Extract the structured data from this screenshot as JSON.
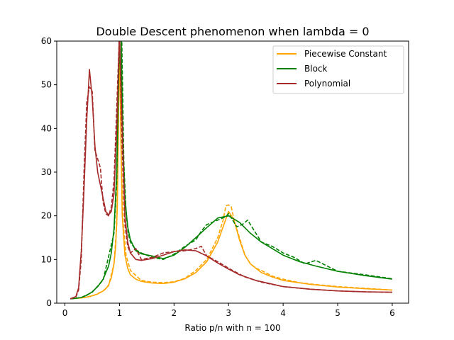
{
  "chart_data": {
    "type": "line",
    "title": "Double Descent phenomenon when lambda = 0",
    "xlabel": "Ratio p/n with n = 100",
    "ylabel": "",
    "xlim": [
      -0.15,
      6.3
    ],
    "ylim": [
      0,
      60
    ],
    "x_ticks": [
      0,
      1,
      2,
      3,
      4,
      5,
      6
    ],
    "y_ticks": [
      0,
      10,
      20,
      30,
      40,
      50,
      60
    ],
    "grid": false,
    "legend_position": "top-right",
    "series": [
      {
        "name": "Piecewise Constant",
        "color": "#ffa500",
        "solid": {
          "x": [
            0.1,
            0.2,
            0.3,
            0.4,
            0.5,
            0.6,
            0.7,
            0.75,
            0.8,
            0.85,
            0.9,
            0.93,
            0.96,
            0.98,
            1.0,
            1.02,
            1.05,
            1.1,
            1.15,
            1.2,
            1.3,
            1.4,
            1.5,
            1.6,
            1.8,
            2.0,
            2.2,
            2.4,
            2.6,
            2.8,
            2.9,
            3.0,
            3.1,
            3.2,
            3.3,
            3.4,
            3.6,
            3.8,
            4.0,
            4.5,
            5.0,
            5.5,
            6.0
          ],
          "y": [
            1.0,
            1.1,
            1.2,
            1.4,
            1.7,
            2.1,
            2.8,
            3.3,
            4.2,
            5.8,
            9.0,
            13.0,
            22.0,
            40.0,
            62.0,
            42.0,
            20.0,
            11.0,
            8.0,
            6.5,
            5.5,
            5.0,
            4.8,
            4.6,
            4.5,
            4.8,
            5.6,
            7.0,
            9.5,
            14.0,
            17.5,
            21.0,
            19.0,
            14.5,
            11.0,
            9.0,
            7.0,
            6.0,
            5.2,
            4.3,
            3.7,
            3.3,
            3.0
          ]
        },
        "dashed": {
          "x": [
            0.1,
            0.3,
            0.5,
            0.7,
            0.8,
            0.9,
            0.95,
            0.98,
            1.0,
            1.03,
            1.07,
            1.12,
            1.2,
            1.4,
            1.6,
            1.8,
            2.0,
            2.2,
            2.4,
            2.6,
            2.8,
            2.9,
            2.95,
            3.0,
            3.05,
            3.1,
            3.2,
            3.3,
            3.4,
            3.5,
            3.6,
            3.8,
            4.0,
            4.3,
            4.5,
            5.0,
            5.5,
            6.0
          ],
          "y": [
            1.0,
            1.2,
            1.6,
            2.8,
            4.0,
            9.0,
            18.0,
            40.0,
            62.0,
            35.0,
            18.0,
            11.0,
            7.5,
            5.2,
            4.8,
            4.7,
            4.9,
            5.7,
            7.5,
            10.0,
            15.0,
            19.0,
            22.3,
            22.5,
            22.0,
            19.0,
            15.0,
            11.0,
            9.0,
            8.0,
            7.5,
            6.2,
            5.5,
            4.7,
            4.4,
            3.8,
            3.4,
            3.0
          ]
        }
      },
      {
        "name": "Block",
        "color": "#008000",
        "solid": {
          "x": [
            0.1,
            0.2,
            0.3,
            0.4,
            0.5,
            0.6,
            0.7,
            0.8,
            0.85,
            0.9,
            0.95,
            1.0,
            1.03,
            1.06,
            1.1,
            1.15,
            1.2,
            1.3,
            1.4,
            1.6,
            1.8,
            2.0,
            2.2,
            2.4,
            2.6,
            2.8,
            3.0,
            3.2,
            3.4,
            3.6,
            3.8,
            4.0,
            4.3,
            4.6,
            5.0,
            5.5,
            6.0
          ],
          "y": [
            1.0,
            1.1,
            1.3,
            1.8,
            2.6,
            3.8,
            5.5,
            8.5,
            11.5,
            17.0,
            30.0,
            62.0,
            62.0,
            38.0,
            24.0,
            17.5,
            14.5,
            12.0,
            11.3,
            10.8,
            10.2,
            11.0,
            12.8,
            15.0,
            17.3,
            19.5,
            20.0,
            18.5,
            16.0,
            14.0,
            12.5,
            11.0,
            9.5,
            8.5,
            7.3,
            6.3,
            5.5
          ]
        },
        "dashed": {
          "x": [
            0.1,
            0.3,
            0.5,
            0.7,
            0.9,
            0.95,
            1.0,
            1.04,
            1.08,
            1.12,
            1.16,
            1.2,
            1.3,
            1.4,
            1.6,
            1.8,
            2.0,
            2.2,
            2.4,
            2.5,
            2.6,
            2.8,
            2.95,
            3.0,
            3.05,
            3.15,
            3.25,
            3.35,
            3.5,
            3.6,
            3.8,
            4.0,
            4.2,
            4.4,
            4.6,
            5.0,
            5.5,
            6.0
          ],
          "y": [
            1.0,
            1.3,
            2.5,
            5.3,
            16.0,
            28.0,
            62.0,
            62.0,
            32.0,
            21.0,
            16.0,
            14.0,
            12.2,
            11.5,
            10.5,
            10.0,
            11.2,
            13.0,
            14.5,
            16.5,
            18.0,
            19.0,
            19.8,
            20.5,
            19.5,
            17.5,
            18.0,
            19.0,
            16.0,
            14.0,
            13.0,
            11.5,
            10.5,
            9.0,
            9.8,
            7.3,
            6.5,
            5.6
          ]
        }
      },
      {
        "name": "Polynomial",
        "color": "#a52a2a",
        "solid": {
          "x": [
            0.1,
            0.2,
            0.25,
            0.3,
            0.35,
            0.4,
            0.45,
            0.5,
            0.55,
            0.6,
            0.7,
            0.75,
            0.8,
            0.85,
            0.9,
            0.95,
            1.0,
            1.05,
            1.1,
            1.15,
            1.2,
            1.3,
            1.4,
            1.6,
            1.8,
            2.0,
            2.2,
            2.4,
            2.6,
            2.8,
            3.0,
            3.2,
            3.5,
            4.0,
            4.5,
            5.0,
            5.5,
            6.0
          ],
          "y": [
            1.0,
            1.5,
            3.5,
            12.0,
            26.0,
            42.0,
            53.5,
            47.0,
            36.0,
            30.0,
            24.0,
            21.0,
            20.2,
            21.0,
            25.0,
            40.0,
            62.0,
            40.0,
            20.0,
            14.0,
            11.5,
            10.0,
            9.8,
            10.2,
            11.0,
            11.8,
            12.2,
            12.0,
            10.8,
            9.2,
            7.8,
            6.5,
            5.2,
            3.8,
            3.2,
            2.8,
            2.6,
            2.5
          ]
        },
        "dashed": {
          "x": [
            0.1,
            0.2,
            0.25,
            0.3,
            0.35,
            0.4,
            0.45,
            0.5,
            0.55,
            0.6,
            0.65,
            0.7,
            0.75,
            0.8,
            0.85,
            0.9,
            0.95,
            1.0,
            1.05,
            1.1,
            1.15,
            1.2,
            1.3,
            1.4,
            1.6,
            1.8,
            2.0,
            2.2,
            2.4,
            2.5,
            2.6,
            2.8,
            3.0,
            3.3,
            3.6,
            4.0,
            4.5,
            5.0,
            5.5,
            6.0
          ],
          "y": [
            1.0,
            1.4,
            3.0,
            10.0,
            30.0,
            46.0,
            49.5,
            48.5,
            35.0,
            33.0,
            31.0,
            23.0,
            20.5,
            20.0,
            22.0,
            28.0,
            45.0,
            62.0,
            35.0,
            18.0,
            13.0,
            11.5,
            12.5,
            10.0,
            10.5,
            11.5,
            11.8,
            12.0,
            12.5,
            13.0,
            10.8,
            9.5,
            8.0,
            6.0,
            4.8,
            3.8,
            3.2,
            2.8,
            2.6,
            2.5
          ]
        }
      }
    ]
  }
}
